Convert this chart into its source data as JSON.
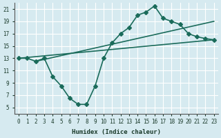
{
  "xlabel": "Humidex (Indice chaleur)",
  "ylabel": "",
  "bg_color": "#d6eaf0",
  "grid_color": "#ffffff",
  "line_color": "#1a6b5a",
  "xlim": [
    -0.5,
    23.5
  ],
  "ylim": [
    4,
    22
  ],
  "xticks": [
    0,
    1,
    2,
    3,
    4,
    5,
    6,
    7,
    8,
    9,
    10,
    11,
    12,
    13,
    14,
    15,
    16,
    17,
    18,
    19,
    20,
    21,
    22,
    23
  ],
  "yticks": [
    5,
    7,
    9,
    11,
    13,
    15,
    17,
    19,
    21
  ],
  "line1_x": [
    0,
    1,
    2,
    3,
    4,
    5,
    6,
    7,
    8,
    9,
    10,
    11,
    12,
    13,
    14,
    15,
    16,
    17,
    18,
    19,
    20,
    21,
    22,
    23
  ],
  "line1_y": [
    13,
    13,
    12.5,
    13,
    10,
    8.5,
    6.5,
    5.5,
    5.5,
    8.5,
    13,
    15.5,
    17,
    18,
    20,
    20.5,
    21.5,
    19.5,
    19,
    18.5,
    17,
    16.5,
    16.2,
    16
  ],
  "line2_x": [
    0,
    23
  ],
  "line2_y": [
    13,
    16
  ],
  "line3_x": [
    2,
    23
  ],
  "line3_y": [
    12.5,
    19
  ],
  "marker": "D",
  "markersize": 3.0,
  "linewidth": 1.2
}
